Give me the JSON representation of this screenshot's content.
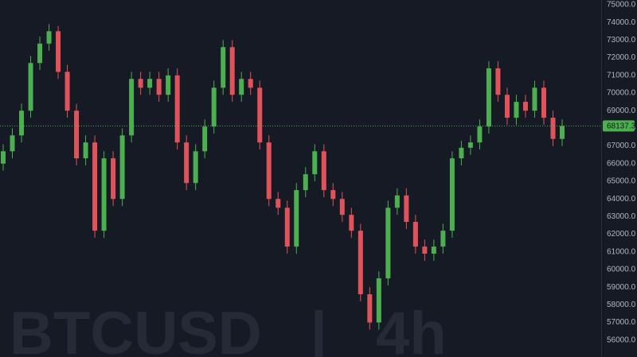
{
  "chart_data": {
    "type": "candlestick",
    "watermark": "BTCUSD | 4h",
    "open": [
      66000,
      66700,
      67600,
      69000,
      71700,
      72800,
      73500,
      71200,
      69000,
      66300,
      67200,
      62200,
      66300,
      64000,
      67600,
      70800,
      70300,
      70800,
      69900,
      71000,
      67200,
      64900,
      66700,
      68100,
      70300,
      72600,
      69900,
      70800,
      70300,
      67200,
      64000,
      63500,
      61300,
      64500,
      65400,
      66700,
      64500,
      64000,
      63100,
      62200,
      58600,
      57000,
      59500,
      63500,
      64200,
      62700,
      61300,
      60900,
      61300,
      62200,
      66300,
      66900,
      67200,
      68100,
      71400,
      69900,
      68600,
      69500,
      69000,
      70300,
      68600,
      67400
    ],
    "high": [
      67100,
      68000,
      69400,
      72100,
      73200,
      73900,
      73800,
      71600,
      69400,
      67600,
      67600,
      66700,
      66700,
      68000,
      71200,
      71200,
      71200,
      71200,
      71400,
      71400,
      67600,
      67100,
      68500,
      70700,
      73000,
      73000,
      71200,
      71200,
      70700,
      67600,
      64400,
      63900,
      64900,
      65800,
      67100,
      67100,
      64900,
      64400,
      63500,
      62600,
      59000,
      59900,
      63900,
      64600,
      64600,
      63100,
      61700,
      61700,
      62600,
      66700,
      67300,
      67600,
      68500,
      71800,
      71800,
      70300,
      69900,
      69900,
      70700,
      70700,
      69000,
      68500
    ],
    "low": [
      65600,
      66300,
      67200,
      68600,
      71300,
      72400,
      70800,
      68600,
      65900,
      65900,
      61800,
      61800,
      63600,
      63600,
      67200,
      69900,
      69900,
      69500,
      69500,
      66800,
      64500,
      64500,
      66300,
      67700,
      69900,
      69500,
      69500,
      69900,
      66800,
      63600,
      63100,
      60900,
      60900,
      64100,
      65000,
      64100,
      63600,
      62700,
      61800,
      58200,
      56600,
      56600,
      59100,
      63100,
      62300,
      60900,
      60500,
      60500,
      60900,
      61800,
      65900,
      66500,
      66800,
      67700,
      69500,
      68200,
      68200,
      68600,
      68600,
      68200,
      67000,
      67000
    ],
    "close": [
      66700,
      67600,
      69000,
      71700,
      72800,
      73500,
      71200,
      69000,
      66300,
      67200,
      62200,
      66300,
      64000,
      67600,
      70800,
      70300,
      70800,
      69900,
      71000,
      67200,
      64900,
      66700,
      68100,
      70300,
      72600,
      69900,
      70800,
      70300,
      67200,
      64000,
      63500,
      61300,
      64500,
      65400,
      66700,
      64500,
      64000,
      63100,
      62200,
      58600,
      57000,
      59500,
      63500,
      64200,
      62700,
      61300,
      60900,
      61300,
      62200,
      66300,
      66900,
      67200,
      68100,
      71400,
      69900,
      68600,
      69500,
      69000,
      70300,
      68600,
      67400,
      68137.3
    ],
    "up_color": "#4caf50",
    "down_color": "#e0535a",
    "last_price": 68137.3,
    "last_price_color": "#4caf50",
    "ylim": [
      55045,
      75270
    ],
    "yticks": [
      {
        "value": 56000,
        "label": "56000.0"
      },
      {
        "value": 57000,
        "label": "57000.0"
      },
      {
        "value": 58000,
        "label": "58000.0"
      },
      {
        "value": 59000,
        "label": "59000.0"
      },
      {
        "value": 60000,
        "label": "60000.0"
      },
      {
        "value": 61000,
        "label": "61000.0"
      },
      {
        "value": 62000,
        "label": "62000.0"
      },
      {
        "value": 63000,
        "label": "63000.0"
      },
      {
        "value": 64000,
        "label": "64000.0"
      },
      {
        "value": 65000,
        "label": "65000.0"
      },
      {
        "value": 66000,
        "label": "66000.0"
      },
      {
        "value": 67000,
        "label": "67000.0"
      },
      {
        "value": 68000,
        "label": "68000.0"
      },
      {
        "value": 69000,
        "label": "69000.0"
      },
      {
        "value": 70000,
        "label": "70000.0"
      },
      {
        "value": 71000,
        "label": "71000.0"
      },
      {
        "value": 72000,
        "label": "72000.0"
      },
      {
        "value": 73000,
        "label": "73000.0"
      },
      {
        "value": 74000,
        "label": "74000.0"
      },
      {
        "value": 75000,
        "label": "75000.0"
      }
    ],
    "grid": false
  }
}
